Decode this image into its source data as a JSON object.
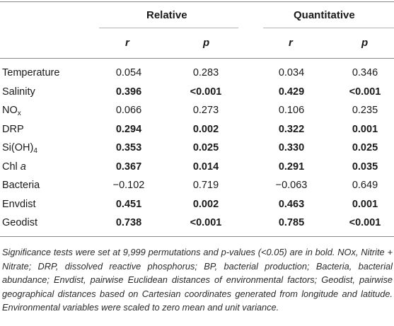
{
  "table": {
    "group_headers": [
      "Relative",
      "Quantitative"
    ],
    "sub_headers": [
      "r",
      "p",
      "r",
      "p"
    ],
    "rows": [
      {
        "label": "Temperature",
        "label_sub": "",
        "label_suffix": "",
        "values": [
          "0.054",
          "0.283",
          "0.034",
          "0.346"
        ],
        "bold": [
          false,
          false,
          false,
          false
        ]
      },
      {
        "label": "Salinity",
        "label_sub": "",
        "label_suffix": "",
        "values": [
          "0.396",
          "<0.001",
          "0.429",
          "<0.001"
        ],
        "bold": [
          true,
          true,
          true,
          true
        ]
      },
      {
        "label": "NO",
        "label_sub": "x",
        "label_suffix": "",
        "values": [
          "0.066",
          "0.273",
          "0.106",
          "0.235"
        ],
        "bold": [
          false,
          false,
          false,
          false
        ]
      },
      {
        "label": "DRP",
        "label_sub": "",
        "label_suffix": "",
        "values": [
          "0.294",
          "0.002",
          "0.322",
          "0.001"
        ],
        "bold": [
          true,
          true,
          true,
          true
        ]
      },
      {
        "label": "Si(OH)",
        "label_sub": "4",
        "label_suffix": "",
        "values": [
          "0.353",
          "0.025",
          "0.330",
          "0.025"
        ],
        "bold": [
          true,
          true,
          true,
          true
        ]
      },
      {
        "label": "Chl ",
        "label_sub": "",
        "label_suffix": "a",
        "values": [
          "0.367",
          "0.014",
          "0.291",
          "0.035"
        ],
        "bold": [
          true,
          true,
          true,
          true
        ]
      },
      {
        "label": "Bacteria",
        "label_sub": "",
        "label_suffix": "",
        "values": [
          "−0.102",
          "0.719",
          "−0.063",
          "0.649"
        ],
        "bold": [
          false,
          false,
          false,
          false
        ]
      },
      {
        "label": "Envdist",
        "label_sub": "",
        "label_suffix": "",
        "values": [
          "0.451",
          "0.002",
          "0.463",
          "0.001"
        ],
        "bold": [
          true,
          true,
          true,
          true
        ]
      },
      {
        "label": "Geodist",
        "label_sub": "",
        "label_suffix": "",
        "values": [
          "0.738",
          "<0.001",
          "0.785",
          "<0.001"
        ],
        "bold": [
          true,
          true,
          true,
          true
        ]
      }
    ]
  },
  "footnote": "Significance tests were set at 9,999 permutations and p-values (<0.05) are in bold. NOx, Nitrite + Nitrate; DRP, dissolved reactive phosphorus; BP, bacterial production; Bacteria, bacterial abundance; Envdist, pairwise Euclidean distances of environmental factors; Geodist, pairwise geographical distances based on Cartesian coordinates generated from longitude and latitude. Environmental variables were scaled to zero mean and unit variance."
}
